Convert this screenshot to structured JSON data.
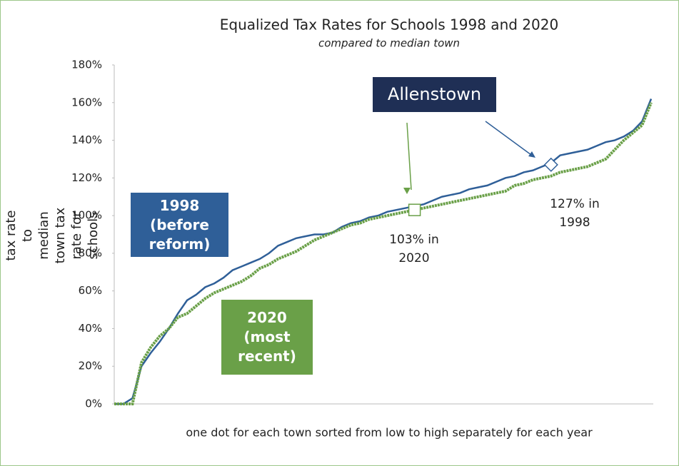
{
  "chart_data": {
    "type": "line",
    "title": "Equalized Tax Rates for Schools 1998 and 2020",
    "subtitle": "compared to median town",
    "y_label": "Ratio of town's tax rate to median town tax rate for schools",
    "x_label": "one dot for each town sorted from low to high separately for each year",
    "callout": "Allenstown",
    "ylim": [
      0,
      180
    ],
    "yticks": [
      {
        "value": 0,
        "label": "0%"
      },
      {
        "value": 20,
        "label": "20%"
      },
      {
        "value": 40,
        "label": "40%"
      },
      {
        "value": 60,
        "label": "60%"
      },
      {
        "value": 80,
        "label": "80%"
      },
      {
        "value": 100,
        "label": "100%"
      },
      {
        "value": 120,
        "label": "120%"
      },
      {
        "value": 140,
        "label": "140%"
      },
      {
        "value": 160,
        "label": "160%"
      },
      {
        "value": 180,
        "label": "180%"
      }
    ],
    "series": [
      {
        "name": "1998 (before reform)",
        "color": "#2f5f98",
        "values": [
          0,
          0,
          3,
          20,
          27,
          33,
          40,
          48,
          55,
          58,
          62,
          64,
          67,
          71,
          73,
          75,
          77,
          80,
          84,
          86,
          88,
          89,
          90,
          90,
          91,
          94,
          96,
          97,
          99,
          100,
          102,
          103,
          104,
          105,
          106,
          108,
          110,
          111,
          112,
          114,
          115,
          116,
          118,
          120,
          121,
          123,
          124,
          126,
          128,
          132,
          133,
          134,
          135,
          137,
          139,
          140,
          142,
          145,
          150,
          162
        ]
      },
      {
        "name": "2020 (most recent)",
        "color": "#6aa048",
        "values": [
          0,
          0,
          0,
          22,
          30,
          36,
          40,
          46,
          48,
          52,
          56,
          59,
          61,
          63,
          65,
          68,
          72,
          74,
          77,
          79,
          81,
          84,
          87,
          89,
          91,
          93,
          95,
          96,
          98,
          99,
          100,
          101,
          102,
          103,
          104,
          105,
          106,
          107,
          108,
          109,
          110,
          111,
          112,
          113,
          116,
          117,
          119,
          120,
          121,
          123,
          124,
          125,
          126,
          128,
          130,
          135,
          140,
          144,
          148,
          160
        ]
      }
    ],
    "annotations": [
      {
        "text": "103% in 2020",
        "value": 103,
        "series": 1
      },
      {
        "text": "127% in 1998",
        "value": 127,
        "series": 0
      }
    ]
  }
}
